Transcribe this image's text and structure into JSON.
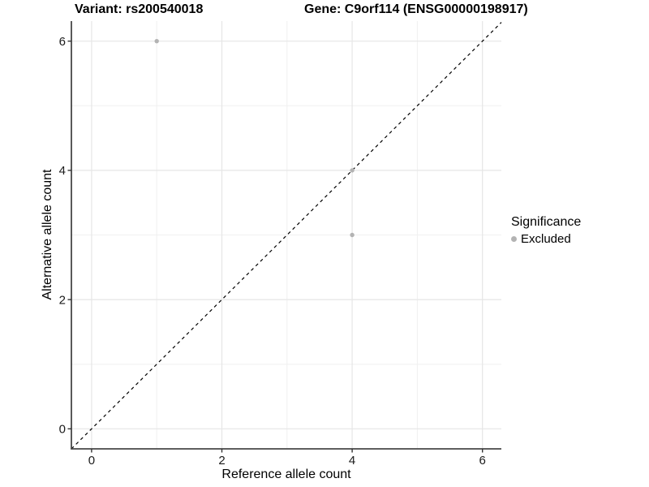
{
  "titles": {
    "variant": "Variant: rs200540018",
    "gene": "Gene: C9orf114 (ENSG00000198917)"
  },
  "axes": {
    "x_label": "Reference allele count",
    "y_label": "Alternative allele count",
    "x_tick_labels": [
      "0",
      "2",
      "4",
      "6"
    ],
    "y_tick_labels": [
      "0",
      "2",
      "4",
      "6"
    ]
  },
  "legend": {
    "title": "Significance",
    "items": [
      {
        "label": "Excluded",
        "color": "#b3b3b3",
        "marker": "circle"
      }
    ]
  },
  "chart_data": {
    "type": "scatter",
    "title": "Variant: rs200540018 — Gene: C9orf114 (ENSG00000198917)",
    "xlabel": "Reference allele count",
    "ylabel": "Alternative allele count",
    "xlim": [
      -0.31,
      6.29
    ],
    "ylim": [
      -0.31,
      6.31
    ],
    "x_ticks": [
      0,
      2,
      4,
      6
    ],
    "y_ticks": [
      0,
      2,
      4,
      6
    ],
    "x_minor_ticks": [
      1,
      3,
      5
    ],
    "y_minor_ticks": [
      1,
      3,
      5
    ],
    "grid": "major+minor",
    "legend_position": "right",
    "series": [
      {
        "name": "Excluded",
        "color": "#b3b3b3",
        "points": [
          [
            1,
            6
          ],
          [
            4,
            4
          ],
          [
            4,
            3
          ]
        ]
      }
    ],
    "reference_line": {
      "kind": "identity y=x",
      "linetype": "dashed",
      "color": "#000000"
    }
  },
  "style": {
    "background": "#ffffff",
    "grid_major_color": "#e6e6e6",
    "grid_minor_color": "#f0f0f0",
    "axis_line_color": "#474747",
    "tick_color": "#333333",
    "tick_label_color": "#1a1a1a",
    "point_color": "#b3b3b3",
    "reference_line_color": "#000000"
  }
}
